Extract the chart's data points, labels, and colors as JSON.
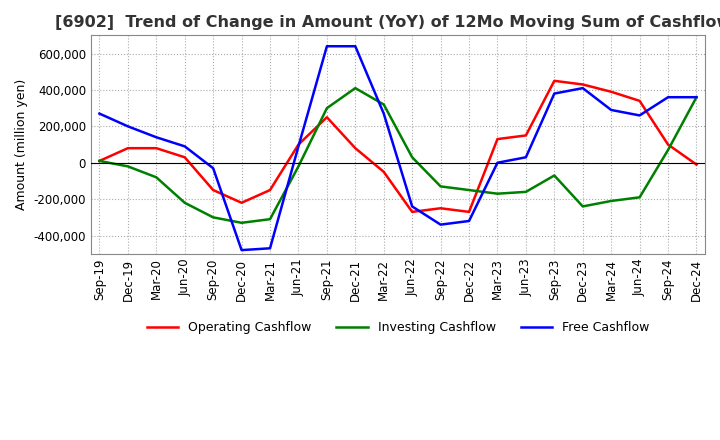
{
  "title": "[6902]  Trend of Change in Amount (YoY) of 12Mo Moving Sum of Cashflows",
  "ylabel": "Amount (million yen)",
  "title_fontsize": 11.5,
  "label_fontsize": 9,
  "tick_fontsize": 8.5,
  "background_color": "#ffffff",
  "grid_color": "#aaaaaa",
  "x_labels": [
    "Sep-19",
    "Dec-19",
    "Mar-20",
    "Jun-20",
    "Sep-20",
    "Dec-20",
    "Mar-21",
    "Jun-21",
    "Sep-21",
    "Dec-21",
    "Mar-22",
    "Jun-22",
    "Sep-22",
    "Dec-22",
    "Mar-23",
    "Jun-23",
    "Sep-23",
    "Dec-23",
    "Mar-24",
    "Jun-24",
    "Sep-24",
    "Dec-24"
  ],
  "operating_cashflow": [
    10000,
    80000,
    80000,
    30000,
    -150000,
    -220000,
    -150000,
    100000,
    250000,
    80000,
    -50000,
    -270000,
    -250000,
    -270000,
    130000,
    150000,
    450000,
    430000,
    390000,
    340000,
    100000,
    -10000
  ],
  "investing_cashflow": [
    10000,
    -20000,
    -80000,
    -220000,
    -300000,
    -330000,
    -310000,
    -20000,
    300000,
    410000,
    320000,
    30000,
    -130000,
    -150000,
    -170000,
    -160000,
    -70000,
    -240000,
    -210000,
    -190000,
    70000,
    360000
  ],
  "free_cashflow": [
    270000,
    200000,
    140000,
    90000,
    -30000,
    -480000,
    -470000,
    90000,
    640000,
    640000,
    270000,
    -240000,
    -340000,
    -320000,
    0,
    30000,
    380000,
    410000,
    290000,
    260000,
    360000,
    360000
  ],
  "operating_color": "#ff0000",
  "investing_color": "#008000",
  "free_color": "#0000ff",
  "ylim": [
    -500000,
    700000
  ],
  "yticks": [
    -400000,
    -200000,
    0,
    200000,
    400000,
    600000
  ]
}
